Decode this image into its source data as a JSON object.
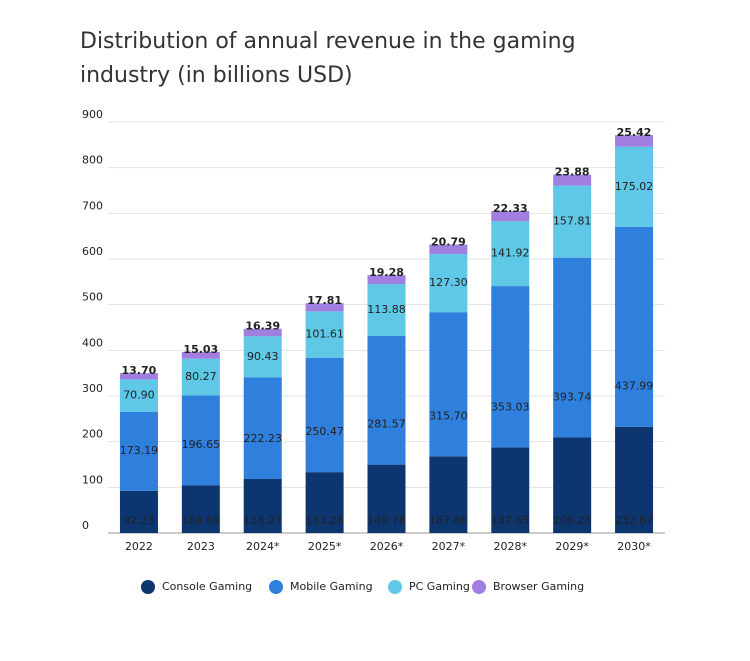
{
  "chart_data": {
    "type": "stacked-bar",
    "title": "Distribution of annual revenue in the gaming industry (in billions USD)",
    "categories": [
      "2022",
      "2023",
      "2024*",
      "2025*",
      "2026*",
      "2027*",
      "2028*",
      "2029*",
      "2030*"
    ],
    "series": [
      {
        "name": "Console Gaming",
        "color": "#0d3570",
        "values": [
          92.23,
          104.69,
          118.27,
          133.26,
          149.76,
          167.86,
          187.65,
          209.23,
          232.67
        ],
        "value_labels": [
          "92.23",
          "104.69",
          "118.27",
          "133.26",
          "149.76",
          "167.86",
          "187.65",
          "209.23",
          "232.67"
        ]
      },
      {
        "name": "Mobile Gaming",
        "color": "#2f7fdc",
        "values": [
          173.19,
          196.65,
          222.23,
          250.47,
          281.57,
          315.7,
          353.03,
          393.74,
          437.99
        ],
        "value_labels": [
          "173.19",
          "196.65",
          "222.23",
          "250.47",
          "281.57",
          "315.70",
          "353.03",
          "393.74",
          "437.99"
        ]
      },
      {
        "name": "PC Gaming",
        "color": "#5ec8e6",
        "values": [
          70.9,
          80.27,
          90.43,
          101.61,
          113.88,
          127.3,
          141.92,
          157.81,
          175.02
        ],
        "value_labels": [
          "70.90",
          "80.27",
          "90.43",
          "101.61",
          "113.88",
          "127.30",
          "141.92",
          "157.81",
          "175.02"
        ]
      },
      {
        "name": "Browser Gaming",
        "color": "#a07fe0",
        "values": [
          13.7,
          15.03,
          16.39,
          17.81,
          19.28,
          20.79,
          22.33,
          23.88,
          25.42
        ],
        "value_labels": [
          "13.70",
          "15.03",
          "16.39",
          "17.81",
          "19.28",
          "20.79",
          "22.33",
          "23.88",
          "25.42"
        ]
      }
    ],
    "ylim": [
      0,
      900
    ],
    "yticks": [
      0,
      100,
      200,
      300,
      400,
      500,
      600,
      700,
      800,
      900
    ],
    "grid": true
  }
}
